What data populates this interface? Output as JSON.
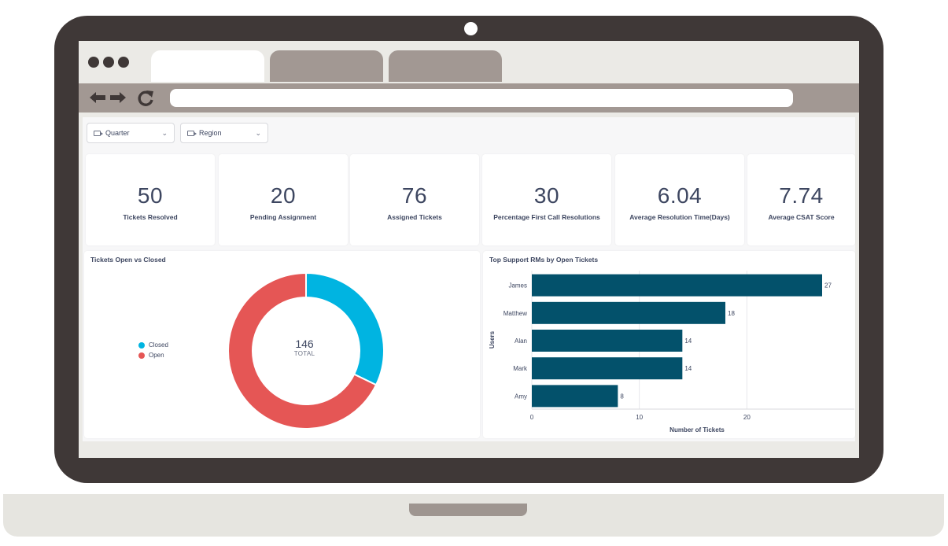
{
  "filters": {
    "quarter_label": "Quarter",
    "region_label": "Region"
  },
  "kpis": [
    {
      "value": "50",
      "label": "Tickets Resolved"
    },
    {
      "value": "20",
      "label": "Pending Assignment"
    },
    {
      "value": "76",
      "label": "Assigned Tickets"
    },
    {
      "value": "30",
      "label": "Percentage First Call Resolutions"
    },
    {
      "value": "6.04",
      "label": "Average Resolution Time(Days)"
    },
    {
      "value": "7.74",
      "label": "Average CSAT Score"
    }
  ],
  "donut": {
    "title": "Tickets Open vs Closed",
    "total": "146",
    "total_label": "TOTAL",
    "legend": [
      {
        "label": "Closed",
        "color": "#00b4e1"
      },
      {
        "label": "Open",
        "color": "#e55655"
      }
    ]
  },
  "bar": {
    "title": "Top Support RMs by Open Tickets",
    "ylabel": "Users",
    "xlabel": "Number of Tickets"
  },
  "colors": {
    "closed": "#00b4e1",
    "open": "#e55655",
    "bar": "#03516b"
  },
  "chart_data": [
    {
      "type": "pie",
      "title": "Tickets Open vs Closed",
      "categories": [
        "Closed",
        "Open"
      ],
      "values": [
        47,
        99
      ],
      "total": 146
    },
    {
      "type": "bar",
      "orientation": "horizontal",
      "title": "Top Support RMs by Open Tickets",
      "categories": [
        "James",
        "Matthew",
        "Alan",
        "Mark",
        "Amy"
      ],
      "values": [
        27,
        18,
        14,
        14,
        8
      ],
      "xlabel": "Number of Tickets",
      "ylabel": "Users",
      "xlim": [
        0,
        30
      ],
      "xticks": [
        0,
        10,
        20
      ],
      "grid": true
    }
  ]
}
